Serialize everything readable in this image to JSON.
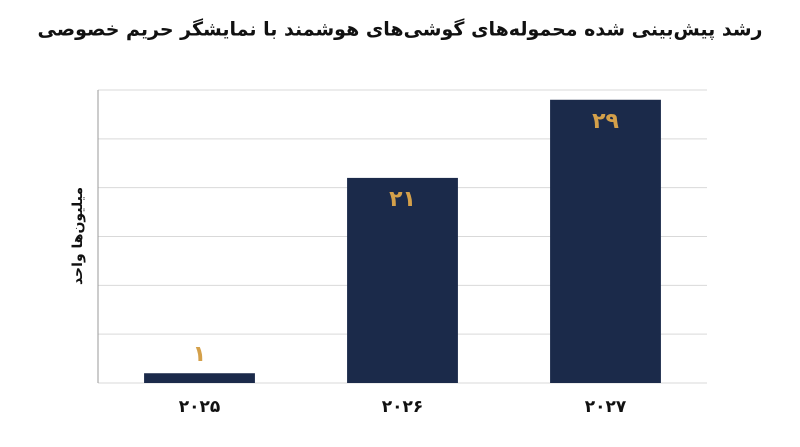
{
  "chart_data": {
    "type": "bar",
    "title": "رشد پیش‌بینی شده محموله‌های گوشی‌های هوشمند با نمایشگر حریم خصوصی",
    "y_label": "میلیون‌ها واحد",
    "categories": [
      "۲۰۲۵",
      "۲۰۲۶",
      "۲۰۲۷"
    ],
    "values": [
      1,
      21,
      29
    ],
    "value_labels": [
      "۱",
      "۲۱",
      "۲۹"
    ],
    "color": "#1b2a4a",
    "ylim": [
      0,
      30
    ],
    "yticks": [
      0,
      5,
      10,
      15,
      20,
      25,
      30
    ],
    "grid": true
  }
}
